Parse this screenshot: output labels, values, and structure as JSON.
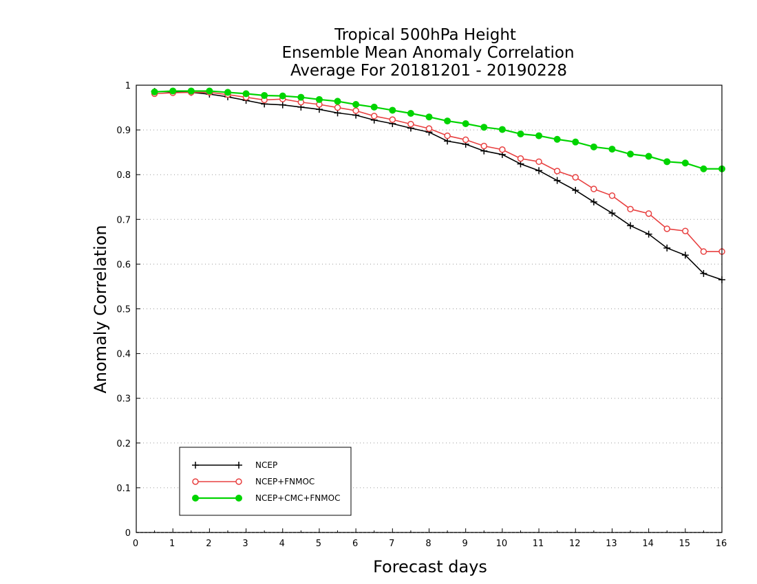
{
  "chart_data": {
    "type": "line",
    "title_lines": [
      "Tropical 500hPa Height",
      "Ensemble Mean Anomaly Correlation",
      "Average For 20181201 - 20190228"
    ],
    "xlabel": "Forecast days",
    "ylabel": "Anomaly Correlation",
    "xlim": [
      0,
      16
    ],
    "ylim": [
      0,
      1
    ],
    "xticks": [
      "0",
      "1",
      "2",
      "3",
      "4",
      "5",
      "6",
      "7",
      "8",
      "9",
      "10",
      "11",
      "12",
      "13",
      "14",
      "15",
      "16"
    ],
    "yticks": [
      "0",
      "0.1",
      "0.2",
      "0.3",
      "0.4",
      "0.5",
      "0.6",
      "0.7",
      "0.8",
      "0.9",
      "1"
    ],
    "grid": "dotted horizontal",
    "legend_position": "lower-left",
    "x": [
      0.5,
      1,
      1.5,
      2,
      2.5,
      3,
      3.5,
      4,
      4.5,
      5,
      5.5,
      6,
      6.5,
      7,
      7.5,
      8,
      8.5,
      9,
      9.5,
      10,
      10.5,
      11,
      11.5,
      12,
      12.5,
      13,
      13.5,
      14,
      14.5,
      15,
      15.5,
      16
    ],
    "series": [
      {
        "name": "NCEP",
        "color": "#000000",
        "marker": "plus",
        "values": [
          0.986,
          0.985,
          0.984,
          0.98,
          0.974,
          0.966,
          0.958,
          0.956,
          0.951,
          0.946,
          0.938,
          0.933,
          0.922,
          0.914,
          0.904,
          0.895,
          0.875,
          0.868,
          0.853,
          0.845,
          0.824,
          0.809,
          0.787,
          0.765,
          0.739,
          0.714,
          0.686,
          0.667,
          0.636,
          0.62,
          0.579,
          0.565
        ]
      },
      {
        "name": "NCEP+FNMOC",
        "color": "#e84040",
        "marker": "open-circle",
        "values": [
          0.981,
          0.983,
          0.984,
          0.984,
          0.979,
          0.973,
          0.967,
          0.969,
          0.962,
          0.957,
          0.95,
          0.943,
          0.931,
          0.923,
          0.913,
          0.903,
          0.887,
          0.878,
          0.864,
          0.856,
          0.836,
          0.829,
          0.808,
          0.794,
          0.768,
          0.753,
          0.723,
          0.713,
          0.679,
          0.674,
          0.628,
          0.628
        ]
      },
      {
        "name": "NCEP+CMC+FNMOC",
        "color": "#00d400",
        "marker": "filled-circle",
        "values": [
          0.985,
          0.987,
          0.987,
          0.987,
          0.984,
          0.981,
          0.977,
          0.976,
          0.973,
          0.968,
          0.964,
          0.957,
          0.951,
          0.944,
          0.937,
          0.929,
          0.92,
          0.914,
          0.906,
          0.901,
          0.891,
          0.887,
          0.879,
          0.873,
          0.862,
          0.857,
          0.846,
          0.841,
          0.829,
          0.826,
          0.813,
          0.813
        ]
      }
    ]
  }
}
